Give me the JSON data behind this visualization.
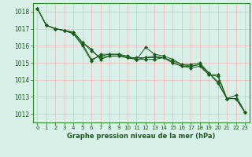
{
  "title": "Graphe pression niveau de la mer (hPa)",
  "background_color": "#d8f0e8",
  "plot_bg_color": "#d8f0e8",
  "grid_color": "#f0c0c0",
  "line_color": "#1a5c1a",
  "marker_color": "#1a5c1a",
  "border_color": "#2d8c2d",
  "xlim": [
    -0.5,
    23.5
  ],
  "ylim": [
    1011.5,
    1018.5
  ],
  "yticks": [
    1012,
    1013,
    1014,
    1015,
    1016,
    1017,
    1018
  ],
  "xticks": [
    0,
    1,
    2,
    3,
    4,
    5,
    6,
    7,
    8,
    9,
    10,
    11,
    12,
    13,
    14,
    15,
    16,
    17,
    18,
    19,
    20,
    21,
    22,
    23
  ],
  "series": [
    [
      1018.2,
      1017.2,
      1017.0,
      1016.9,
      1016.8,
      1016.2,
      1015.8,
      1015.2,
      1015.4,
      1015.4,
      1015.3,
      1015.2,
      1015.9,
      1015.5,
      1015.4,
      1015.2,
      1014.9,
      1014.9,
      1015.0,
      1014.4,
      1013.9,
      1012.9,
      1013.1,
      1012.1
    ],
    [
      1018.2,
      1017.2,
      1017.0,
      1016.9,
      1016.7,
      1016.1,
      1015.2,
      1015.4,
      1015.5,
      1015.5,
      1015.3,
      1015.3,
      1015.3,
      1015.3,
      1015.3,
      1015.1,
      1014.9,
      1014.8,
      1014.9,
      1014.3,
      1014.3,
      1012.9,
      1012.9,
      1012.1
    ],
    [
      1018.2,
      1017.2,
      1017.0,
      1016.9,
      1016.7,
      1016.0,
      1015.1,
      1015.5,
      1015.5,
      1015.5,
      1015.4,
      1015.2,
      1015.2,
      1015.2,
      1015.3,
      1015.0,
      1014.8,
      1014.7,
      1014.8,
      1014.3,
      1014.2,
      1012.9,
      1012.9,
      1012.1
    ],
    [
      1018.2,
      1017.2,
      1017.0,
      1016.9,
      1016.8,
      1016.2,
      1015.7,
      1015.3,
      1015.4,
      1015.4,
      1015.3,
      1015.2,
      1015.3,
      1015.4,
      1015.3,
      1015.0,
      1014.8,
      1014.8,
      1014.9,
      1014.4,
      1013.8,
      1012.9,
      1012.9,
      1012.1
    ]
  ]
}
